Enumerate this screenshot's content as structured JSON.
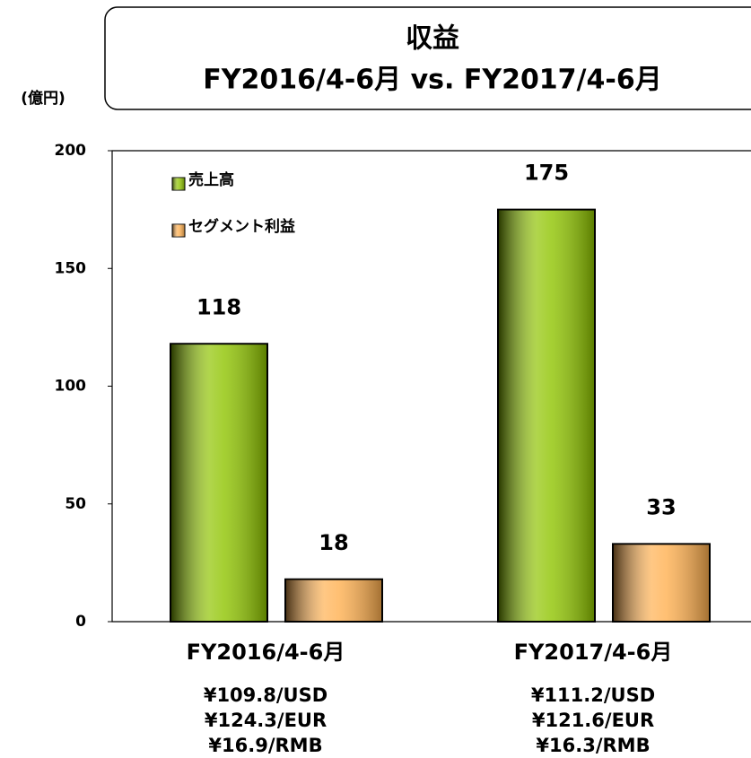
{
  "chart_data": {
    "type": "bar",
    "title": "収益",
    "subtitle": "FY2016/4-6月 vs.  FY2017/4-6月",
    "y_label": "(億円)",
    "categories": [
      "FY2016/4-6月",
      "FY2017/4-6月"
    ],
    "category_notes": [
      [
        "¥109.8/USD",
        "¥124.3/EUR",
        "¥16.9/RMB"
      ],
      [
        "¥111.2/USD",
        "¥121.6/EUR",
        "¥16.3/RMB"
      ]
    ],
    "series": [
      {
        "name": "売上高",
        "color": "#8fc400",
        "values": [
          118,
          175
        ]
      },
      {
        "name": "セグメント利益",
        "color": "#ffb050",
        "values": [
          18,
          33
        ]
      }
    ],
    "ylim": [
      0,
      200
    ],
    "yticks": [
      0,
      50,
      100,
      150,
      200
    ],
    "grid": false,
    "legend": "upper left"
  }
}
